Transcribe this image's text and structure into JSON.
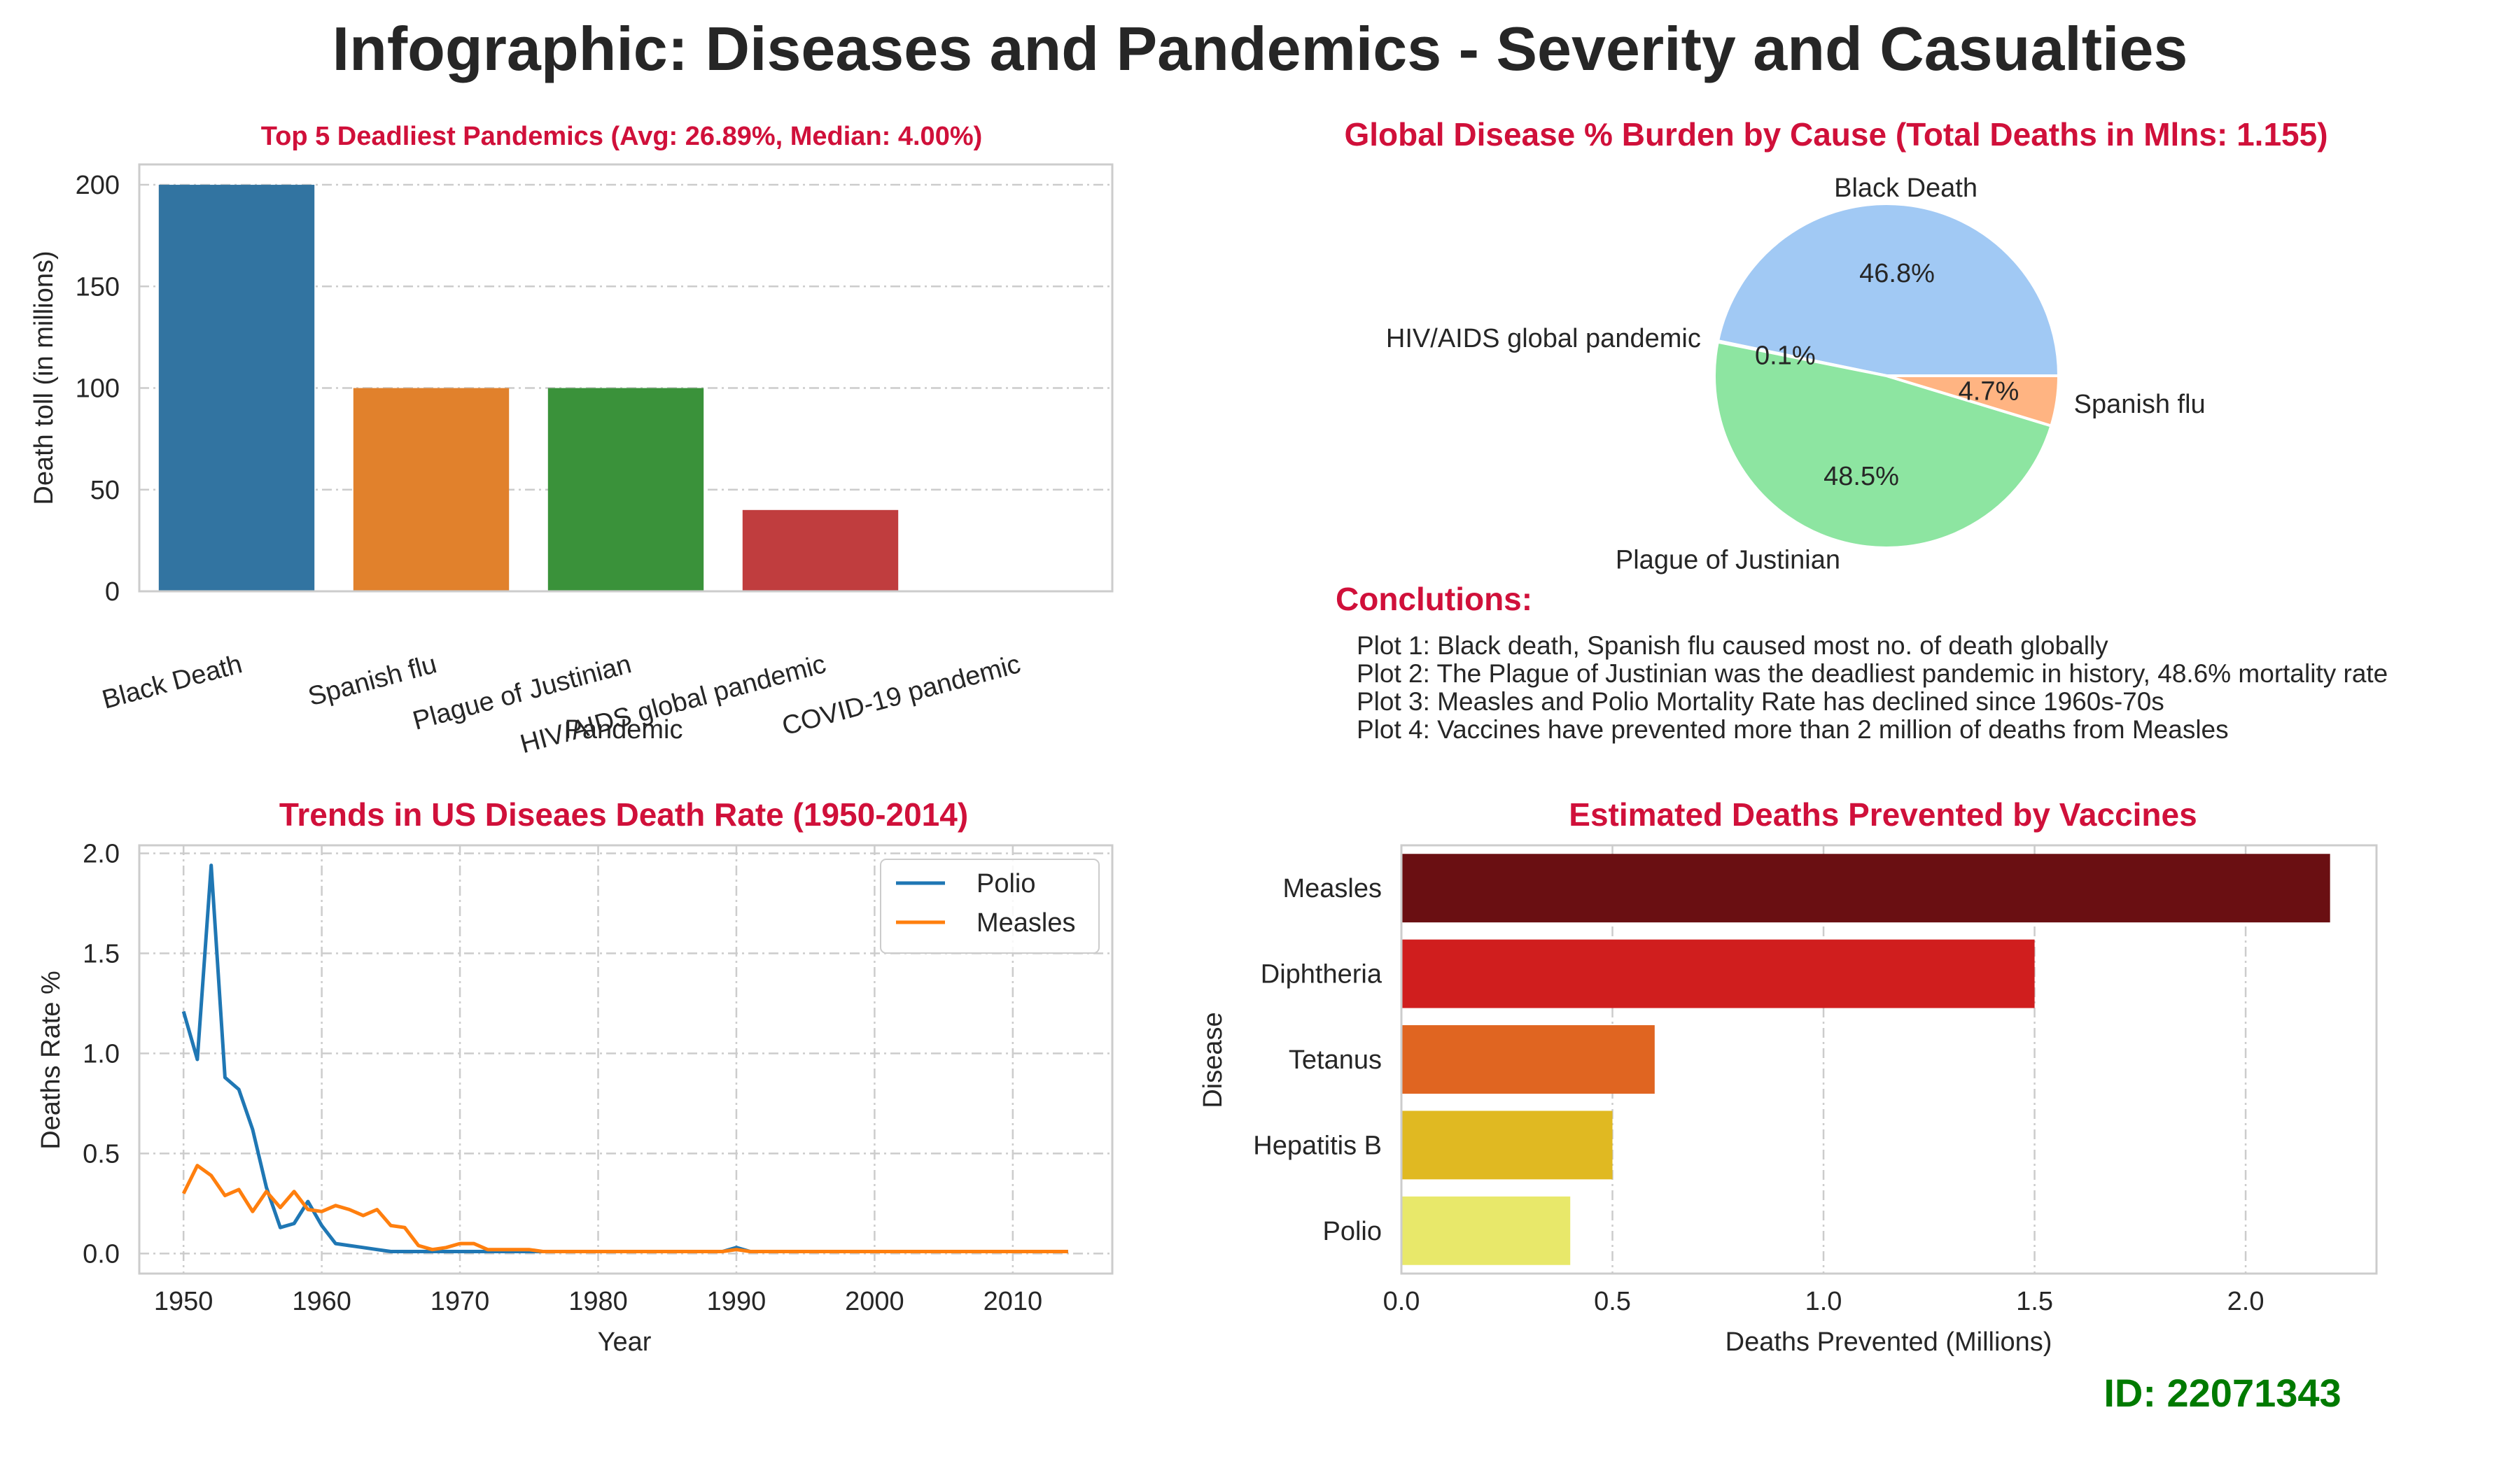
{
  "title": "Infographic: Diseases and Pandemics - Severity and Casualties",
  "id_label": "ID: 22071343",
  "colors": {
    "title": "#262626",
    "subtitle": "#d0103a",
    "id": "#007a00",
    "grid": "#cccccc",
    "frame": "#cccccc"
  },
  "conclusions": {
    "heading": "Conclutions:",
    "lines": [
      "Plot 1: Black death, Spanish flu caused most no. of death globally",
      "Plot 2: The Plague of Justinian was the deadliest pandemic in history, 48.6% mortality rate",
      "Plot 3: Measles and Polio Mortality Rate has declined since 1960s-70s",
      "Plot 4: Vaccines have prevented more than 2 million of deaths from Measles"
    ]
  },
  "chart_data": [
    {
      "type": "bar",
      "title": "Top 5 Deadliest Pandemics (Avg: 26.89%, Median: 4.00%)",
      "xlabel": "Pandemic",
      "ylabel": "Death toll (in millions)",
      "categories": [
        "Black Death",
        "Spanish flu",
        "Plague of Justinian",
        "HIV/AIDS global pandemic",
        "COVID-19 pandemic"
      ],
      "values": [
        200,
        100,
        100,
        40,
        0
      ],
      "colors": [
        "#3274a1",
        "#e1812c",
        "#3a923a",
        "#c03d3e",
        "#9372b2"
      ],
      "yticks": [
        0,
        50,
        100,
        150,
        200
      ],
      "ylim": [
        0,
        210
      ],
      "grid": true
    },
    {
      "type": "pie",
      "title": "Global Disease % Burden by Cause (Total Deaths in Mlns: 1.155)",
      "labels": [
        "Black Death",
        "HIV/AIDS global pandemic",
        "Plague of Justinian",
        "Spanish flu"
      ],
      "values": [
        46.8,
        0.1,
        48.5,
        4.7
      ],
      "pct_labels": [
        "46.8%",
        "0.1%",
        "48.5%",
        "4.7%"
      ],
      "colors": [
        "#a1c9f4",
        "#ff9f9b",
        "#8de5a1",
        "#ffb482"
      ]
    },
    {
      "type": "line",
      "title": "Trends in US Diseaes Death Rate (1950-2014)",
      "xlabel": "Year",
      "ylabel": "Deaths Rate %",
      "xticks": [
        1950,
        1960,
        1970,
        1980,
        1990,
        2000,
        2010
      ],
      "yticks": [
        "0.0",
        "0.5",
        "1.0",
        "1.5",
        "2.0"
      ],
      "xlim": [
        1946.8,
        2017.2
      ],
      "ylim": [
        -0.1,
        2.04
      ],
      "grid": true,
      "legend_position": "upper right",
      "series": [
        {
          "name": "Polio",
          "color": "#1f77b4",
          "x": [
            1950,
            1951,
            1952,
            1953,
            1954,
            1955,
            1956,
            1957,
            1958,
            1959,
            1960,
            1961,
            1962,
            1963,
            1964,
            1965,
            1966,
            1967,
            1968,
            1969,
            1970,
            1971,
            1972,
            1973,
            1974,
            1975,
            1976,
            1977,
            1978,
            1979,
            1980,
            1981,
            1982,
            1983,
            1984,
            1985,
            1986,
            1987,
            1988,
            1989,
            1990,
            1991,
            1992,
            1993,
            1994,
            1995,
            1996,
            1997,
            1998,
            1999,
            2000,
            2001,
            2002,
            2003,
            2004,
            2005,
            2006,
            2007,
            2008,
            2009,
            2010,
            2011,
            2012,
            2013,
            2014
          ],
          "y": [
            1.21,
            0.97,
            1.94,
            0.88,
            0.82,
            0.62,
            0.33,
            0.13,
            0.15,
            0.26,
            0.14,
            0.05,
            0.04,
            0.03,
            0.02,
            0.01,
            0.01,
            0.01,
            0.01,
            0.01,
            0.01,
            0.01,
            0.01,
            0.01,
            0.01,
            0.01,
            0.01,
            0.01,
            0.01,
            0.01,
            0.01,
            0.01,
            0.01,
            0.01,
            0.01,
            0.01,
            0.01,
            0.01,
            0.01,
            0.01,
            0.03,
            0.01,
            0.01,
            0.01,
            0.01,
            0.01,
            0.01,
            0.01,
            0.01,
            0.01,
            0.01,
            0.01,
            0.01,
            0.01,
            0.01,
            0.01,
            0.01,
            0.01,
            0.01,
            0.01,
            0.01,
            0.01,
            0.01,
            0.01,
            0.01
          ]
        },
        {
          "name": "Measles",
          "color": "#ff7f0e",
          "x": [
            1950,
            1951,
            1952,
            1953,
            1954,
            1955,
            1956,
            1957,
            1958,
            1959,
            1960,
            1961,
            1962,
            1963,
            1964,
            1965,
            1966,
            1967,
            1968,
            1969,
            1970,
            1971,
            1972,
            1973,
            1974,
            1975,
            1976,
            1977,
            1978,
            1979,
            1980,
            1981,
            1982,
            1983,
            1984,
            1985,
            1986,
            1987,
            1988,
            1989,
            1990,
            1991,
            1992,
            1993,
            1994,
            1995,
            1996,
            1997,
            1998,
            1999,
            2000,
            2001,
            2002,
            2003,
            2004,
            2005,
            2006,
            2007,
            2008,
            2009,
            2010,
            2011,
            2012,
            2013,
            2014
          ],
          "y": [
            0.3,
            0.44,
            0.39,
            0.29,
            0.32,
            0.21,
            0.31,
            0.23,
            0.31,
            0.22,
            0.21,
            0.24,
            0.22,
            0.19,
            0.22,
            0.14,
            0.13,
            0.04,
            0.02,
            0.03,
            0.05,
            0.05,
            0.02,
            0.02,
            0.02,
            0.02,
            0.01,
            0.01,
            0.01,
            0.01,
            0.01,
            0.01,
            0.01,
            0.01,
            0.01,
            0.01,
            0.01,
            0.01,
            0.01,
            0.01,
            0.02,
            0.01,
            0.01,
            0.01,
            0.01,
            0.01,
            0.01,
            0.01,
            0.01,
            0.01,
            0.01,
            0.01,
            0.01,
            0.01,
            0.01,
            0.01,
            0.01,
            0.01,
            0.01,
            0.01,
            0.01,
            0.01,
            0.01,
            0.01,
            0.01
          ]
        }
      ]
    },
    {
      "type": "bar",
      "orientation": "horizontal",
      "title": "Estimated Deaths Prevented by Vaccines",
      "xlabel": "Deaths Prevented (Millions)",
      "ylabel": "Disease",
      "categories": [
        "Measles",
        "Diphtheria",
        "Tetanus",
        "Hepatitis B",
        "Polio"
      ],
      "values": [
        2.2,
        1.5,
        0.6,
        0.5,
        0.4
      ],
      "colors": [
        "#6a0f12",
        "#d01e1e",
        "#e06521",
        "#e0b922",
        "#e8e86a"
      ],
      "xticks": [
        "0.0",
        "0.5",
        "1.0",
        "1.5",
        "2.0"
      ],
      "xlim": [
        0,
        2.31
      ],
      "grid": true
    }
  ]
}
